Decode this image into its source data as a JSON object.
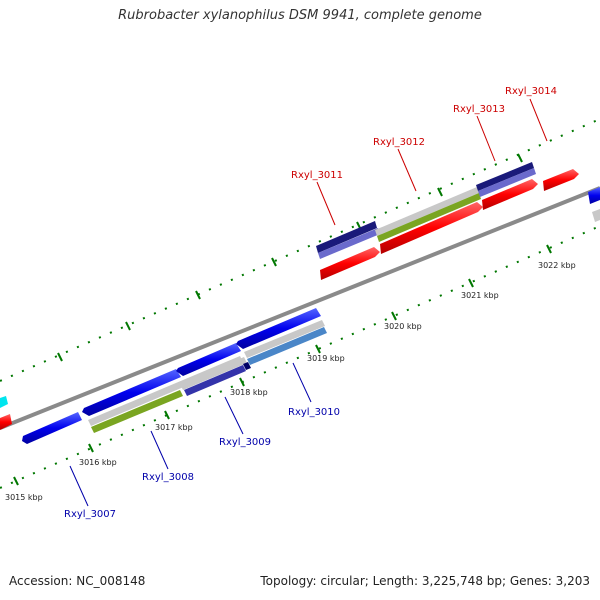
{
  "title": "Rubrobacter xylanophilus DSM 9941, complete genome",
  "footer": {
    "accession": "Accession: NC_008148",
    "summary": "Topology: circular; Length: 3,225,748 bp; Genes: 3,203"
  },
  "colors": {
    "forward_gene": "#ff0000",
    "reverse_gene": "#0000ff",
    "forward_label": "#cc0000",
    "reverse_label": "#0000aa",
    "backbone": "#888888",
    "tick": "#007700"
  },
  "kbp_labels": [
    "3015 kbp",
    "3016 kbp",
    "3017 kbp",
    "3018 kbp",
    "3019 kbp",
    "3020 kbp",
    "3021 kbp",
    "3022 kbp"
  ],
  "gene_labels_top": [
    "Rxyl_3011",
    "Rxyl_3012",
    "Rxyl_3013",
    "Rxyl_3014"
  ],
  "gene_labels_bottom": [
    "Rxyl_3007",
    "Rxyl_3008",
    "Rxyl_3009",
    "Rxyl_3010"
  ]
}
